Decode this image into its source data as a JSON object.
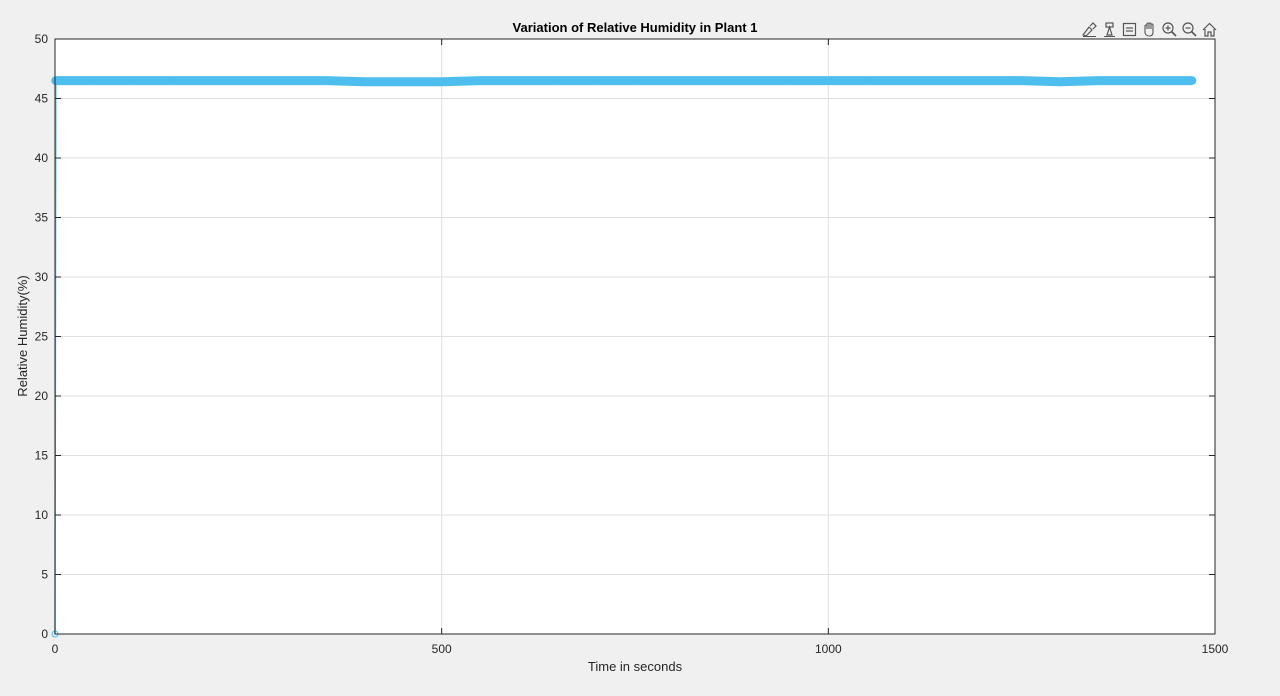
{
  "toolbar": {
    "icons": [
      "brush-icon",
      "data-tip-icon",
      "legend-icon",
      "pan-icon",
      "zoom-in-icon",
      "zoom-out-icon",
      "home-icon"
    ]
  },
  "colors": {
    "series": "#4dbeee",
    "background": "#f0f0f0",
    "axes": "#ffffff",
    "grid": "#dfdfdf"
  },
  "chart_data": {
    "type": "line",
    "title": "Variation of Relative Humidity in Plant 1",
    "xlabel": "Time in seconds",
    "ylabel": "Relative Humidity(%)",
    "xlim": [
      0,
      1500
    ],
    "ylim": [
      0,
      50
    ],
    "xticks": [
      0,
      500,
      1000,
      1500
    ],
    "yticks": [
      0,
      5,
      10,
      15,
      20,
      25,
      30,
      35,
      40,
      45,
      50
    ],
    "grid": true,
    "series": [
      {
        "marker": "o",
        "x": [
          0,
          1,
          50,
          100,
          150,
          200,
          250,
          300,
          350,
          400,
          450,
          500,
          550,
          600,
          650,
          700,
          750,
          800,
          850,
          900,
          950,
          1000,
          1050,
          1100,
          1150,
          1200,
          1250,
          1300,
          1350,
          1400,
          1450,
          1470
        ],
        "y": [
          0,
          46.5,
          46.5,
          46.5,
          46.5,
          46.5,
          46.5,
          46.5,
          46.5,
          46.4,
          46.4,
          46.4,
          46.5,
          46.5,
          46.5,
          46.5,
          46.5,
          46.5,
          46.5,
          46.5,
          46.5,
          46.5,
          46.5,
          46.5,
          46.5,
          46.5,
          46.5,
          46.4,
          46.5,
          46.5,
          46.5,
          46.5
        ]
      }
    ]
  }
}
